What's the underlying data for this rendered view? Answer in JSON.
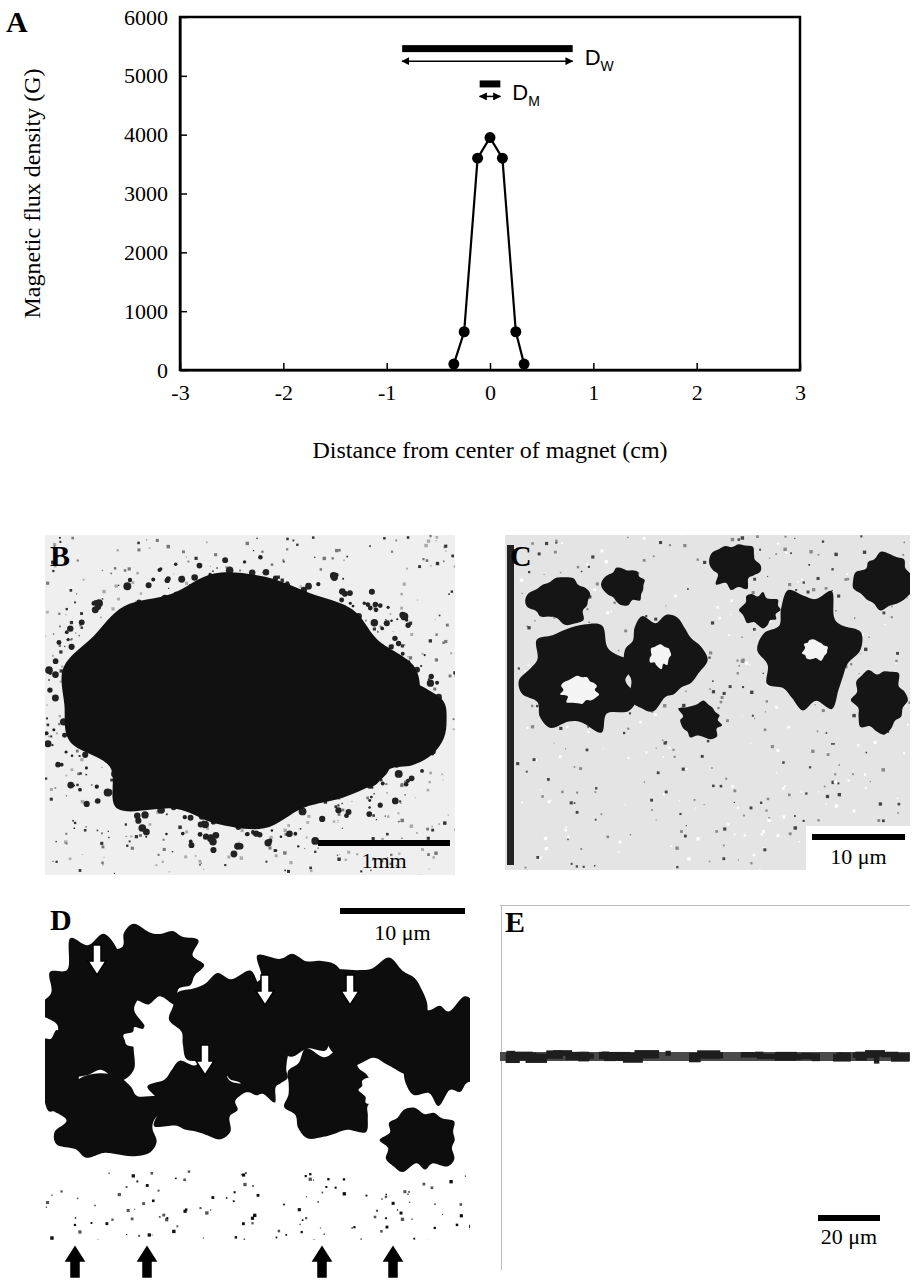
{
  "chart_data": {
    "type": "line",
    "panel_label": "A",
    "x_label": "Distance from center of magnet (cm)",
    "y_label": "Magnetic flux density (G)",
    "x": [
      -0.35,
      -0.25,
      -0.12,
      0,
      0.12,
      0.25,
      0.33
    ],
    "values": [
      100,
      650,
      3600,
      3950,
      3600,
      650,
      100
    ],
    "color": "#000000",
    "marker": "circle",
    "line_style": "solid",
    "grid": false,
    "xlim": [
      -3,
      3
    ],
    "xticks": [
      -3,
      -2,
      -1,
      0,
      1,
      2,
      3
    ],
    "ylim": [
      0,
      6000
    ],
    "yticks": [
      0,
      1000,
      2000,
      3000,
      4000,
      5000,
      6000
    ],
    "annotations": [
      {
        "text": "D",
        "subscript": "W",
        "span": [
          -0.85,
          0.8
        ],
        "y": 5250
      },
      {
        "text": "D",
        "subscript": "M",
        "span": [
          -0.1,
          0.1
        ],
        "y": 4650
      }
    ]
  },
  "micrographs": [
    {
      "label": "B",
      "scale_bar": "1mm"
    },
    {
      "label": "C",
      "scale_bar": "10 μm"
    },
    {
      "label": "D",
      "scale_bar": "10 μm"
    },
    {
      "label": "E",
      "scale_bar": "20 μm"
    }
  ]
}
